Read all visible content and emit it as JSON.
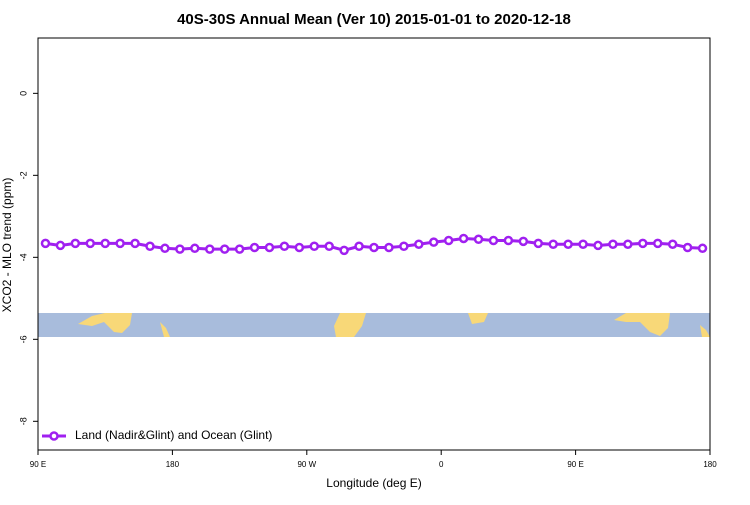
{
  "chart_data": {
    "type": "line",
    "title": "40S-30S Annual Mean (Ver 10)   2015-01-01 to 2020-12-18",
    "x_label": "Longitude (deg E)",
    "y_label": "XCO2 - MLO trend (ppm)",
    "x": [
      95,
      105,
      115,
      125,
      135,
      145,
      155,
      165,
      175,
      185,
      195,
      205,
      215,
      225,
      235,
      245,
      255,
      265,
      275,
      285,
      295,
      305,
      315,
      325,
      335,
      345,
      355,
      365,
      375,
      385,
      395,
      405,
      415,
      425,
      435,
      445,
      455,
      465,
      475,
      485,
      495,
      505,
      515,
      525,
      535
    ],
    "series": [
      {
        "name": "Land (Nadir&Glint) and Ocean (Glint)",
        "color": "#a020f0",
        "values": [
          -3.66,
          -3.71,
          -3.66,
          -3.66,
          -3.66,
          -3.66,
          -3.66,
          -3.73,
          -3.78,
          -3.8,
          -3.78,
          -3.8,
          -3.8,
          -3.8,
          -3.76,
          -3.76,
          -3.73,
          -3.76,
          -3.73,
          -3.73,
          -3.83,
          -3.73,
          -3.76,
          -3.76,
          -3.73,
          -3.68,
          -3.63,
          -3.59,
          -3.54,
          -3.56,
          -3.59,
          -3.59,
          -3.61,
          -3.66,
          -3.68,
          -3.68,
          -3.68,
          -3.71,
          -3.68,
          -3.68,
          -3.66,
          -3.66,
          -3.68,
          -3.76,
          -3.78
        ]
      }
    ],
    "xlim": [
      90,
      540
    ],
    "xticks": [
      {
        "value": 90,
        "label": "90 E"
      },
      180,
      {
        "value": 270,
        "label": "90 W"
      },
      {
        "value": 360,
        "label": "0"
      },
      {
        "value": 450,
        "label": "90 E"
      },
      {
        "value": 540,
        "label": "180"
      }
    ],
    "ylim": [
      -8.7,
      1.35
    ],
    "yticks": [
      0,
      -2,
      -4,
      -6,
      -8
    ],
    "legend": "bottom-left"
  }
}
